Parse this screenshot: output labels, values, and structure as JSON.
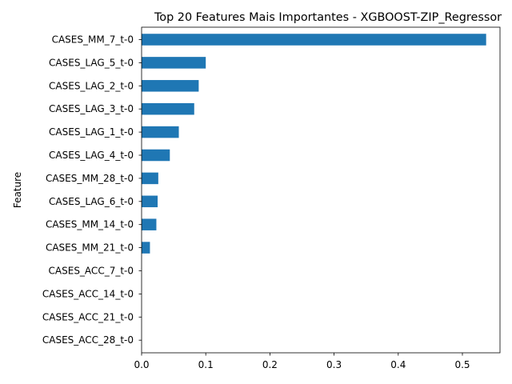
{
  "chart_data": {
    "type": "bar",
    "orientation": "horizontal",
    "title": "Top 20 Features Mais Importantes - XGBOOST-ZIP_Regressor",
    "xlabel": "",
    "ylabel": "Feature",
    "categories": [
      "CASES_MM_7_t-0",
      "CASES_LAG_5_t-0",
      "CASES_LAG_2_t-0",
      "CASES_LAG_3_t-0",
      "CASES_LAG_1_t-0",
      "CASES_LAG_4_t-0",
      "CASES_MM_28_t-0",
      "CASES_LAG_6_t-0",
      "CASES_MM_14_t-0",
      "CASES_MM_21_t-0",
      "CASES_ACC_7_t-0",
      "CASES_ACC_14_t-0",
      "CASES_ACC_21_t-0",
      "CASES_ACC_28_t-0"
    ],
    "values": [
      0.537,
      0.1,
      0.089,
      0.082,
      0.058,
      0.044,
      0.026,
      0.025,
      0.023,
      0.013,
      0.0,
      0.0,
      0.0,
      0.0
    ],
    "xticks": [
      "0.0",
      "0.1",
      "0.2",
      "0.3",
      "0.4",
      "0.5"
    ],
    "xlim": [
      0,
      0.564
    ],
    "grid": false,
    "legend": "none",
    "bar_color": "#1f77b4"
  }
}
